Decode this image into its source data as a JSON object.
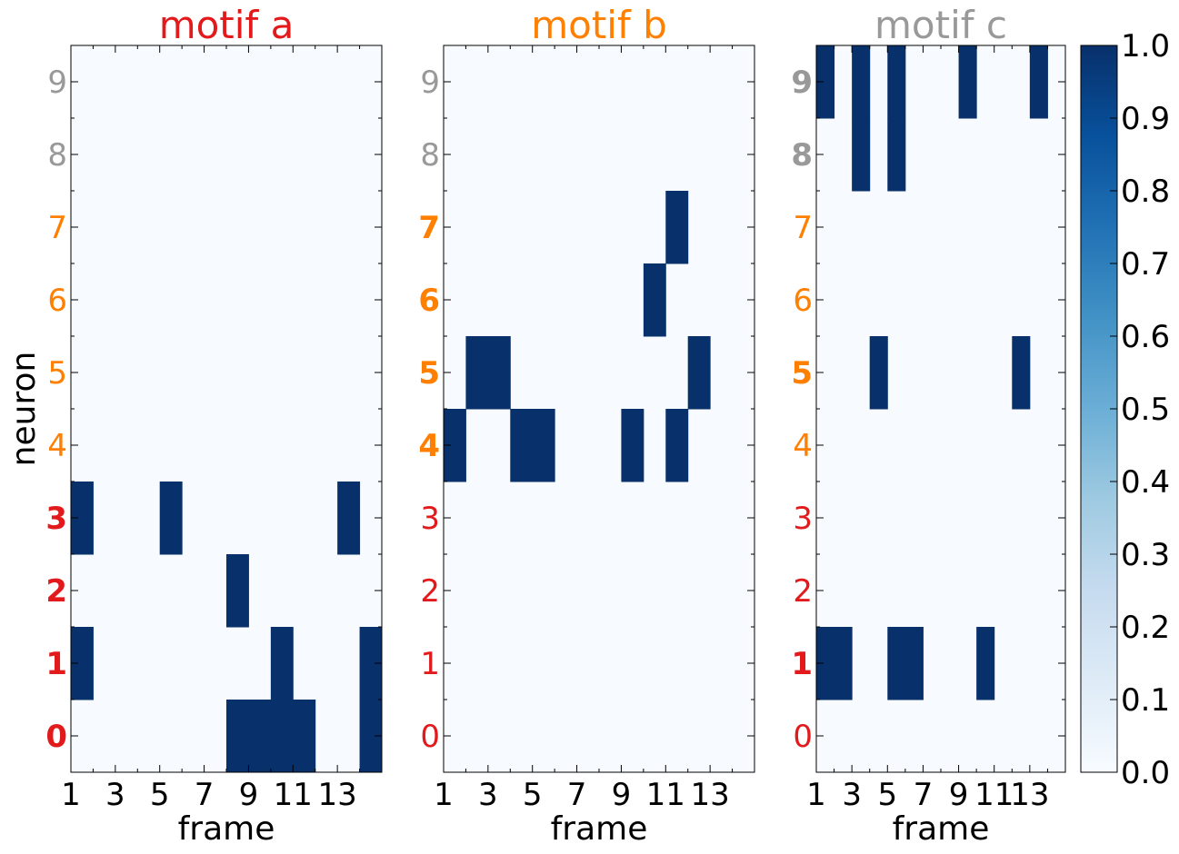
{
  "colors": {
    "red": "#e31a1c",
    "orange": "#ff7f00",
    "gray": "#999999",
    "cell_on": "#08306b",
    "cell_off": "#f7fbff",
    "text": "#000000"
  },
  "neuron_groups": [
    {
      "neurons": [
        0,
        1,
        2,
        3
      ],
      "color_key": "red"
    },
    {
      "neurons": [
        4,
        5,
        6,
        7
      ],
      "color_key": "orange"
    },
    {
      "neurons": [
        8,
        9
      ],
      "color_key": "gray"
    }
  ],
  "chart_data": [
    {
      "type": "heatmap",
      "title": "motif a",
      "title_color": "#e31a1c",
      "xlabel": "frame",
      "ylabel": "neuron",
      "x_ticks": [
        "1",
        "3",
        "5",
        "7",
        "9",
        "11",
        "13"
      ],
      "y_ticks": [
        "0",
        "1",
        "2",
        "3",
        "4",
        "5",
        "6",
        "7",
        "8",
        "9"
      ],
      "n_frames": 14,
      "n_neurons": 10,
      "bold_neurons": [
        0,
        1,
        2,
        3
      ],
      "active_cells": [
        {
          "neuron": 3,
          "frames": [
            1,
            5,
            13
          ]
        },
        {
          "neuron": 2,
          "frames": [
            8
          ]
        },
        {
          "neuron": 1,
          "frames": [
            1,
            10,
            14
          ]
        },
        {
          "neuron": 0,
          "frames": [
            8,
            9,
            10,
            11,
            14
          ]
        }
      ]
    },
    {
      "type": "heatmap",
      "title": "motif b",
      "title_color": "#ff7f00",
      "xlabel": "frame",
      "ylabel": "",
      "x_ticks": [
        "1",
        "3",
        "5",
        "7",
        "9",
        "11",
        "13"
      ],
      "y_ticks": [
        "0",
        "1",
        "2",
        "3",
        "4",
        "5",
        "6",
        "7",
        "8",
        "9"
      ],
      "n_frames": 14,
      "n_neurons": 10,
      "bold_neurons": [
        4,
        5,
        6,
        7
      ],
      "active_cells": [
        {
          "neuron": 7,
          "frames": [
            11
          ]
        },
        {
          "neuron": 6,
          "frames": [
            10
          ]
        },
        {
          "neuron": 5,
          "frames": [
            2,
            3,
            12
          ]
        },
        {
          "neuron": 4,
          "frames": [
            1,
            4,
            5,
            9,
            11
          ]
        }
      ]
    },
    {
      "type": "heatmap",
      "title": "motif c",
      "title_color": "#999999",
      "xlabel": "frame",
      "ylabel": "",
      "x_ticks": [
        "1",
        "3",
        "5",
        "7",
        "9",
        "11",
        "13"
      ],
      "y_ticks": [
        "0",
        "1",
        "2",
        "3",
        "4",
        "5",
        "6",
        "7",
        "8",
        "9"
      ],
      "n_frames": 14,
      "n_neurons": 10,
      "bold_neurons": [
        1,
        5,
        8,
        9
      ],
      "active_cells": [
        {
          "neuron": 9,
          "frames": [
            1,
            3,
            5,
            9,
            13
          ]
        },
        {
          "neuron": 8,
          "frames": [
            3,
            5
          ]
        },
        {
          "neuron": 5,
          "frames": [
            4,
            12
          ]
        },
        {
          "neuron": 1,
          "frames": [
            1,
            2,
            5,
            6,
            10
          ]
        }
      ]
    }
  ],
  "colorbar": {
    "ticks": [
      "0.0",
      "0.1",
      "0.2",
      "0.3",
      "0.4",
      "0.5",
      "0.6",
      "0.7",
      "0.8",
      "0.9",
      "1.0"
    ],
    "vmin": 0.0,
    "vmax": 1.0,
    "cmap_stops": [
      "#f7fbff",
      "#deebf7",
      "#c6dbef",
      "#9ecae1",
      "#6baed6",
      "#4292c6",
      "#2171b5",
      "#08519c",
      "#08306b"
    ]
  }
}
